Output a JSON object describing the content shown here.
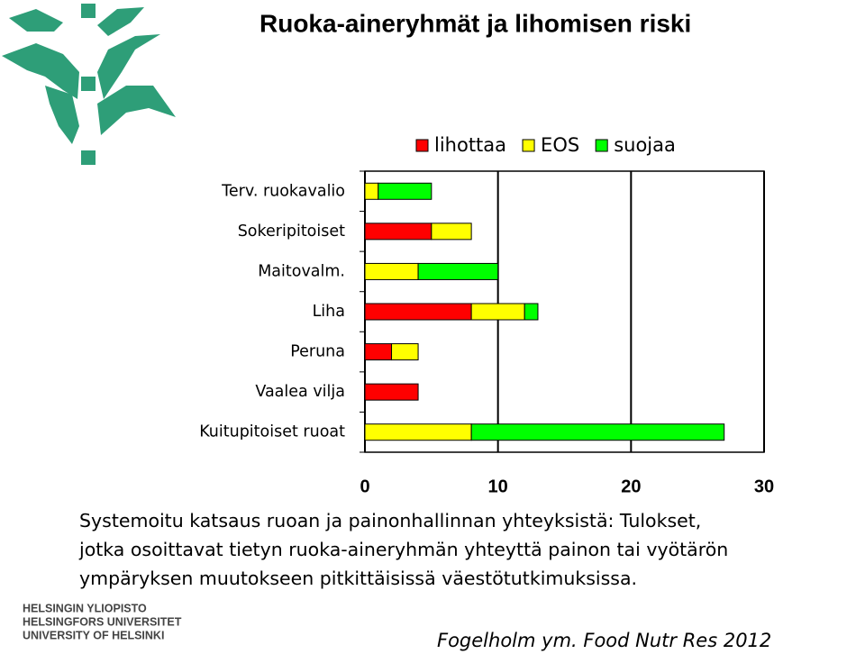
{
  "slide": {
    "title": "Ruoka-aineryhmät ja lihomisen riski",
    "caption_lines": [
      "Systemoitu katsaus ruoan ja painonhallinnan yhteyksistä: Tulokset,",
      "jotka osoittavat tietyn ruoka-aineryhmän yhteyttä painon tai vyötärön",
      "ympäryksen muutokseen pitkittäisissä väestötutkimuksissa."
    ],
    "logo_text": [
      "HELSINGIN YLIOPISTO",
      "HELSINGFORS UNIVERSITET",
      "UNIVERSITY OF HELSINKI"
    ],
    "citation": "Fogelholm ym. Food Nutr Res 2012"
  },
  "chart_data": {
    "type": "stacked-barh",
    "categories": [
      "Terv. ruokavalio",
      "Sokeripitoiset",
      "Maitovalm.",
      "Liha",
      "Peruna",
      "Vaalea vilja",
      "Kuitupitoiset ruoat"
    ],
    "series": [
      {
        "name": "lihottaa",
        "color": "#ff0000",
        "values": [
          0,
          5,
          0,
          8,
          2,
          4,
          0
        ]
      },
      {
        "name": "EOS",
        "color": "#ffff00",
        "values": [
          1,
          3,
          4,
          4,
          2,
          0,
          8
        ]
      },
      {
        "name": "suojaa",
        "color": "#00ff00",
        "values": [
          4,
          0,
          6,
          1,
          0,
          0,
          19
        ]
      }
    ],
    "xlim": [
      0,
      30
    ],
    "xticks": [
      0,
      10,
      20,
      30
    ],
    "grid": true,
    "legend": "top"
  }
}
